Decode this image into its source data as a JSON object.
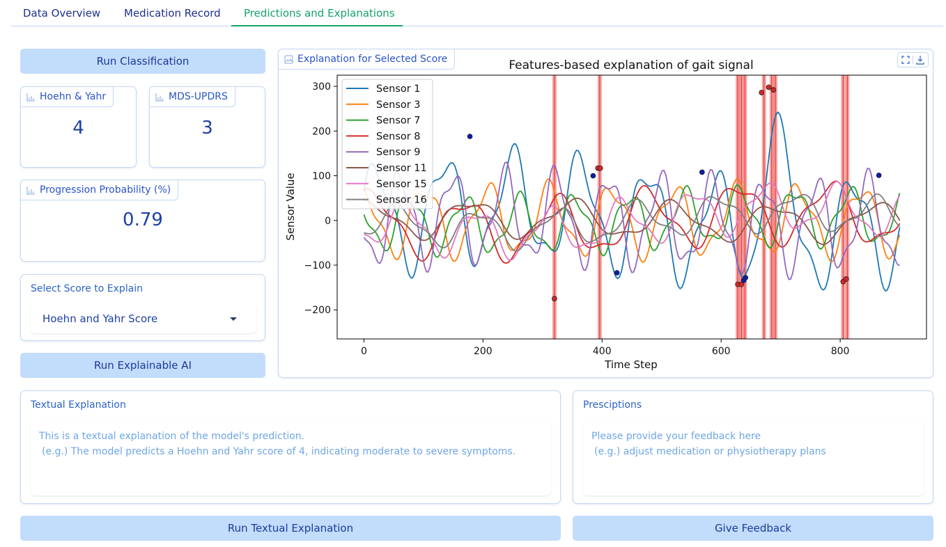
{
  "tabs": [
    {
      "label": "Data Overview",
      "active": false
    },
    {
      "label": "Medication Record",
      "active": false
    },
    {
      "label": "Predictions and Explanations",
      "active": true
    }
  ],
  "buttons": {
    "run_classification": "Run Classification",
    "run_xai": "Run Explainable AI",
    "run_textual": "Run Textual Explanation",
    "give_feedback": "Give Feedback"
  },
  "scores": {
    "hoehn_yahr": {
      "label": "Hoehn & Yahr",
      "value": "4"
    },
    "mds_updrs": {
      "label": "MDS-UPDRS",
      "value": "3"
    },
    "progression": {
      "label": "Progression Probability (%)",
      "value": "0.79"
    }
  },
  "select": {
    "label": "Select Score to Explain",
    "value": "Hoehn and Yahr Score"
  },
  "plot_panel": {
    "label": "Explanation for Selected Score"
  },
  "textual": {
    "label": "Textual Explanation",
    "line1": "This is a textual explanation of the model's prediction.",
    "line2": "(e.g.) The model predicts a Hoehn and Yahr score of 4, indicating moderate to severe symptoms."
  },
  "prescriptions": {
    "label": "Presciptions",
    "line1": "Please provide your feedback here",
    "line2": "(e.g.) adjust medication or physiotherapy plans"
  },
  "colors": {
    "accent_green": "#14a36a",
    "button_bg": "#c2dcfb",
    "text_blue": "#1d3fa8"
  },
  "chart_data": {
    "type": "line",
    "title": "Features-based explanation of gait signal",
    "xlabel": "Time Step",
    "ylabel": "Sensor Value",
    "xlim": [
      -45,
      945
    ],
    "ylim": [
      -265,
      325
    ],
    "xticks": [
      0,
      200,
      400,
      600,
      800
    ],
    "yticks": [
      300,
      200,
      100,
      0,
      -100,
      -200
    ],
    "legend_position": "top-left",
    "series": [
      {
        "name": "Sensor 1",
        "color": "#1f77b4"
      },
      {
        "name": "Sensor 3",
        "color": "#ff7f0e"
      },
      {
        "name": "Sensor 7",
        "color": "#2ca02c"
      },
      {
        "name": "Sensor 8",
        "color": "#d62728"
      },
      {
        "name": "Sensor 9",
        "color": "#9467bd"
      },
      {
        "name": "Sensor 11",
        "color": "#8c564b"
      },
      {
        "name": "Sensor 15",
        "color": "#e377c2"
      },
      {
        "name": "Sensor 16",
        "color": "#7f7f7f"
      }
    ],
    "highlight_time_steps": [
      320,
      396,
      628,
      634,
      640,
      672,
      685,
      691,
      805,
      812
    ],
    "red_points": [
      [
        320,
        -175
      ],
      [
        393,
        117
      ],
      [
        397,
        117
      ],
      [
        628,
        -143
      ],
      [
        634,
        -143
      ],
      [
        668,
        286
      ],
      [
        680,
        298
      ],
      [
        688,
        292
      ],
      [
        805,
        -137
      ],
      [
        810,
        -131
      ]
    ],
    "blue_points": [
      [
        178,
        188
      ],
      [
        385,
        100
      ],
      [
        425,
        -117
      ],
      [
        568,
        108
      ],
      [
        638,
        -134
      ],
      [
        641,
        -128
      ],
      [
        865,
        101
      ]
    ]
  }
}
